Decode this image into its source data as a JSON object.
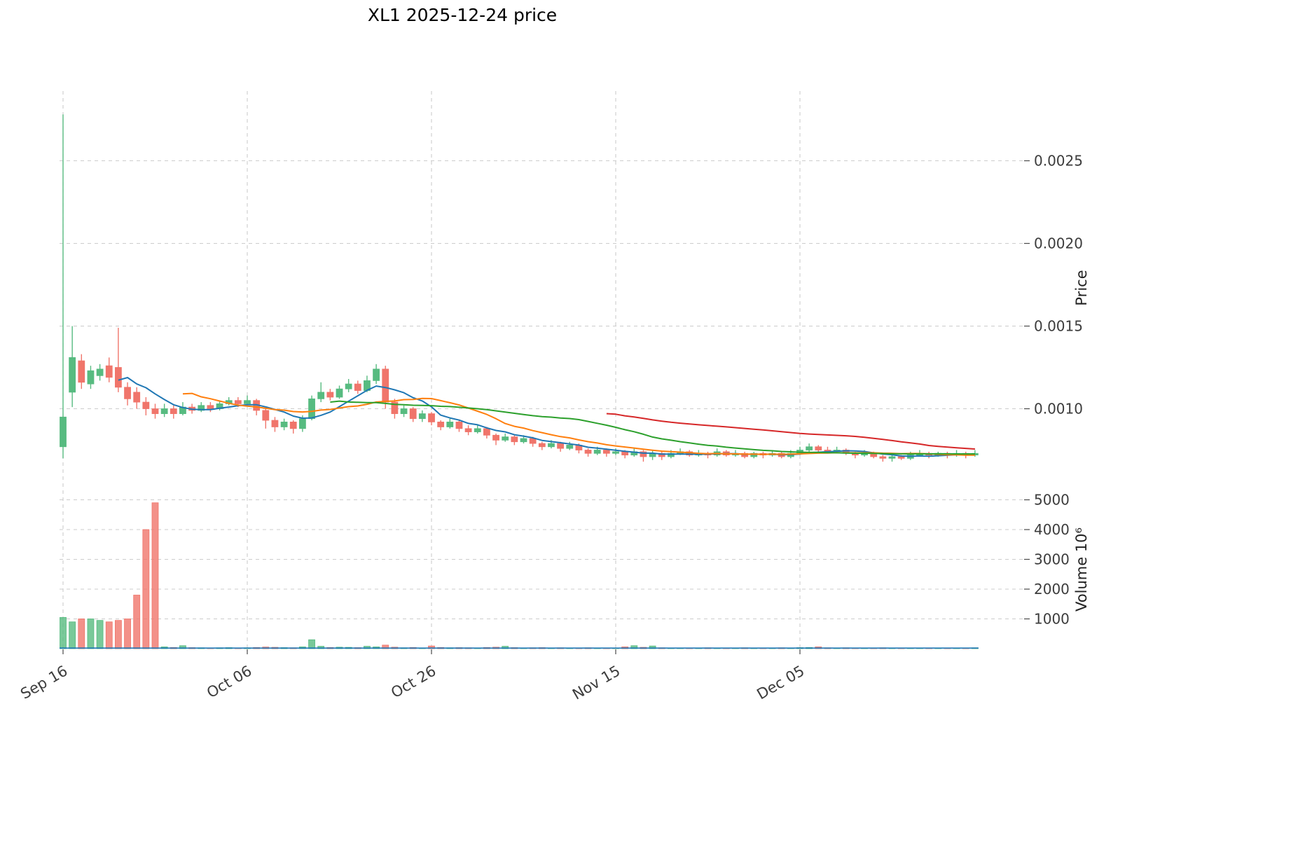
{
  "title": "XL1  2025-12-24  price",
  "axes": {
    "price_label": "Price",
    "volume_label": "Volume  10⁶",
    "price_ticks": [
      {
        "value": 0.001,
        "label": "0.0010"
      },
      {
        "value": 0.0015,
        "label": "0.0015"
      },
      {
        "value": 0.002,
        "label": "0.0020"
      },
      {
        "value": 0.0025,
        "label": "0.0025"
      }
    ],
    "volume_ticks": [
      {
        "value": 1000,
        "label": "1000"
      },
      {
        "value": 2000,
        "label": "2000"
      },
      {
        "value": 3000,
        "label": "3000"
      },
      {
        "value": 4000,
        "label": "4000"
      },
      {
        "value": 5000,
        "label": "5000"
      }
    ],
    "x_ticks": [
      {
        "index": 0,
        "label": "Sep 16"
      },
      {
        "index": 20,
        "label": "Oct 06"
      },
      {
        "index": 40,
        "label": "Oct 26"
      },
      {
        "index": 60,
        "label": "Nov 15"
      },
      {
        "index": 80,
        "label": "Dec 05"
      }
    ]
  },
  "style": {
    "up_color": "#57bb80",
    "down_color": "#f0756b",
    "ma_colors": [
      "#1f77b4",
      "#ff7f0e",
      "#2ca02c",
      "#d62728"
    ],
    "grid_color": "#cccccc",
    "text_color": "#3c3c3c",
    "baseline_color": "#1f77b4"
  },
  "chart_data": {
    "type": "candlestick",
    "symbol": "XL1",
    "as_of_date": "2025-12-24",
    "title": "XL1  2025-12-24  price",
    "ylabel": "Price",
    "ylabel_lower": "Volume  10⁶",
    "price_ylim": [
      0.00055,
      0.00292
    ],
    "volume_ylim": [
      0,
      5400
    ],
    "grid": "dashed",
    "moving_average_windows": [
      7,
      14,
      30,
      60
    ],
    "columns": [
      "date",
      "open",
      "high",
      "low",
      "close",
      "volume_10e6"
    ],
    "ohlcv": [
      [
        "2025-09-16",
        0.00077,
        0.00278,
        0.0007,
        0.00095,
        1050
      ],
      [
        "2025-09-17",
        0.0011,
        0.0015,
        0.00101,
        0.00131,
        900
      ],
      [
        "2025-09-18",
        0.00129,
        0.00133,
        0.00112,
        0.00116,
        1000
      ],
      [
        "2025-09-19",
        0.00115,
        0.00126,
        0.00112,
        0.00123,
        1000
      ],
      [
        "2025-09-20",
        0.0012,
        0.00127,
        0.00117,
        0.00124,
        950
      ],
      [
        "2025-09-21",
        0.00126,
        0.00131,
        0.00116,
        0.00119,
        900
      ],
      [
        "2025-09-22",
        0.00125,
        0.00149,
        0.0011,
        0.00113,
        950
      ],
      [
        "2025-09-23",
        0.00113,
        0.00116,
        0.00102,
        0.00106,
        1000
      ],
      [
        "2025-09-24",
        0.0011,
        0.00113,
        0.001,
        0.00104,
        1800
      ],
      [
        "2025-09-25",
        0.00104,
        0.00107,
        0.00096,
        0.001,
        4000
      ],
      [
        "2025-09-26",
        0.001,
        0.00103,
        0.00094,
        0.00097,
        4900
      ],
      [
        "2025-09-27",
        0.00097,
        0.00103,
        0.00095,
        0.001,
        60
      ],
      [
        "2025-09-28",
        0.001,
        0.00102,
        0.00094,
        0.00097,
        40
      ],
      [
        "2025-09-29",
        0.00097,
        0.00104,
        0.00096,
        0.00101,
        100
      ],
      [
        "2025-09-30",
        0.00101,
        0.00103,
        0.00097,
        0.00099,
        35
      ],
      [
        "2025-10-01",
        0.00099,
        0.00104,
        0.00098,
        0.00102,
        30
      ],
      [
        "2025-10-02",
        0.00102,
        0.00104,
        0.00098,
        0.001,
        25
      ],
      [
        "2025-10-03",
        0.001,
        0.00105,
        0.00099,
        0.00103,
        30
      ],
      [
        "2025-10-04",
        0.00103,
        0.00107,
        0.00102,
        0.00105,
        35
      ],
      [
        "2025-10-05",
        0.00105,
        0.00107,
        0.00101,
        0.00103,
        25
      ],
      [
        "2025-10-06",
        0.00103,
        0.00108,
        0.00102,
        0.00105,
        30
      ],
      [
        "2025-10-07",
        0.00105,
        0.00106,
        0.00096,
        0.00099,
        40
      ],
      [
        "2025-10-08",
        0.00099,
        0.001,
        0.00088,
        0.00093,
        55
      ],
      [
        "2025-10-09",
        0.00093,
        0.00095,
        0.00086,
        0.00089,
        45
      ],
      [
        "2025-10-10",
        0.00089,
        0.00094,
        0.00087,
        0.00092,
        35
      ],
      [
        "2025-10-11",
        0.00092,
        0.00093,
        0.00085,
        0.00088,
        30
      ],
      [
        "2025-10-12",
        0.00088,
        0.00096,
        0.00086,
        0.00094,
        60
      ],
      [
        "2025-10-13",
        0.00094,
        0.00108,
        0.00093,
        0.00106,
        300
      ],
      [
        "2025-10-14",
        0.00106,
        0.00116,
        0.00104,
        0.0011,
        80
      ],
      [
        "2025-10-15",
        0.0011,
        0.00112,
        0.00105,
        0.00107,
        40
      ],
      [
        "2025-10-16",
        0.00107,
        0.00114,
        0.00106,
        0.00112,
        50
      ],
      [
        "2025-10-17",
        0.00112,
        0.00118,
        0.0011,
        0.00115,
        45
      ],
      [
        "2025-10-18",
        0.00115,
        0.00117,
        0.00109,
        0.00111,
        35
      ],
      [
        "2025-10-19",
        0.00111,
        0.0012,
        0.0011,
        0.00117,
        80
      ],
      [
        "2025-10-20",
        0.00117,
        0.00127,
        0.00115,
        0.00124,
        60
      ],
      [
        "2025-10-21",
        0.00124,
        0.00126,
        0.001,
        0.00104,
        120
      ],
      [
        "2025-10-22",
        0.00104,
        0.00106,
        0.00094,
        0.00097,
        50
      ],
      [
        "2025-10-23",
        0.00097,
        0.00102,
        0.00095,
        0.001,
        30
      ],
      [
        "2025-10-24",
        0.001,
        0.00101,
        0.00092,
        0.00094,
        40
      ],
      [
        "2025-10-25",
        0.00094,
        0.00099,
        0.00092,
        0.00097,
        25
      ],
      [
        "2025-10-26",
        0.00097,
        0.00098,
        0.0009,
        0.00092,
        90
      ],
      [
        "2025-10-27",
        0.00092,
        0.00093,
        0.00087,
        0.00089,
        40
      ],
      [
        "2025-10-28",
        0.00089,
        0.00094,
        0.00088,
        0.00092,
        30
      ],
      [
        "2025-10-29",
        0.00092,
        0.00093,
        0.00086,
        0.00088,
        35
      ],
      [
        "2025-10-30",
        0.00088,
        0.0009,
        0.00084,
        0.00086,
        30
      ],
      [
        "2025-10-31",
        0.00086,
        0.0009,
        0.00085,
        0.00088,
        25
      ],
      [
        "2025-11-01",
        0.00088,
        0.00089,
        0.00082,
        0.00084,
        40
      ],
      [
        "2025-11-02",
        0.00084,
        0.00085,
        0.00078,
        0.00081,
        50
      ],
      [
        "2025-11-03",
        0.00081,
        0.00085,
        0.0008,
        0.00083,
        80
      ],
      [
        "2025-11-04",
        0.00083,
        0.00084,
        0.00078,
        0.0008,
        35
      ],
      [
        "2025-11-05",
        0.0008,
        0.00084,
        0.00079,
        0.00082,
        25
      ],
      [
        "2025-11-06",
        0.00082,
        0.00083,
        0.00077,
        0.00079,
        30
      ],
      [
        "2025-11-07",
        0.00079,
        0.0008,
        0.00075,
        0.00077,
        35
      ],
      [
        "2025-11-08",
        0.00077,
        0.00081,
        0.00076,
        0.00079,
        25
      ],
      [
        "2025-11-09",
        0.00079,
        0.0008,
        0.00074,
        0.00076,
        30
      ],
      [
        "2025-11-10",
        0.00076,
        0.0008,
        0.00075,
        0.00078,
        20
      ],
      [
        "2025-11-11",
        0.00078,
        0.00079,
        0.00073,
        0.00075,
        25
      ],
      [
        "2025-11-12",
        0.00075,
        0.00076,
        0.00071,
        0.00073,
        30
      ],
      [
        "2025-11-13",
        0.00073,
        0.00077,
        0.00072,
        0.00075,
        20
      ],
      [
        "2025-11-14",
        0.00075,
        0.00076,
        0.00071,
        0.00073,
        25
      ],
      [
        "2025-11-15",
        0.00073,
        0.00076,
        0.00072,
        0.00074,
        20
      ],
      [
        "2025-11-16",
        0.00074,
        0.00075,
        0.0007,
        0.00072,
        60
      ],
      [
        "2025-11-17",
        0.00072,
        0.00076,
        0.00071,
        0.00074,
        100
      ],
      [
        "2025-11-18",
        0.00074,
        0.00075,
        0.00068,
        0.00071,
        45
      ],
      [
        "2025-11-19",
        0.00071,
        0.00075,
        0.00069,
        0.00073,
        90
      ],
      [
        "2025-11-20",
        0.00073,
        0.00074,
        0.00069,
        0.00071,
        30
      ],
      [
        "2025-11-21",
        0.00071,
        0.00075,
        0.0007,
        0.00073,
        25
      ],
      [
        "2025-11-22",
        0.00073,
        0.00076,
        0.00072,
        0.00074,
        20
      ],
      [
        "2025-11-23",
        0.00074,
        0.00075,
        0.00071,
        0.00072,
        25
      ],
      [
        "2025-11-24",
        0.00072,
        0.00075,
        0.00071,
        0.00073,
        20
      ],
      [
        "2025-11-25",
        0.00073,
        0.00074,
        0.0007,
        0.00072,
        30
      ],
      [
        "2025-11-26",
        0.00072,
        0.00076,
        0.00071,
        0.00074,
        25
      ],
      [
        "2025-11-27",
        0.00074,
        0.00075,
        0.00071,
        0.00072,
        20
      ],
      [
        "2025-11-28",
        0.00072,
        0.00075,
        0.00071,
        0.00073,
        25
      ],
      [
        "2025-11-29",
        0.00073,
        0.00074,
        0.0007,
        0.00071,
        30
      ],
      [
        "2025-11-30",
        0.00071,
        0.00074,
        0.0007,
        0.00073,
        20
      ],
      [
        "2025-12-01",
        0.00073,
        0.00074,
        0.0007,
        0.00072,
        25
      ],
      [
        "2025-12-02",
        0.00072,
        0.00075,
        0.00071,
        0.00073,
        20
      ],
      [
        "2025-12-03",
        0.00073,
        0.00074,
        0.0007,
        0.00071,
        30
      ],
      [
        "2025-12-04",
        0.00071,
        0.00075,
        0.0007,
        0.00073,
        25
      ],
      [
        "2025-12-05",
        0.00073,
        0.00077,
        0.00072,
        0.00075,
        35
      ],
      [
        "2025-12-06",
        0.00075,
        0.00079,
        0.00074,
        0.00077,
        40
      ],
      [
        "2025-12-07",
        0.00077,
        0.00078,
        0.00074,
        0.00075,
        60
      ],
      [
        "2025-12-08",
        0.00075,
        0.00077,
        0.00073,
        0.00074,
        30
      ],
      [
        "2025-12-09",
        0.00074,
        0.00077,
        0.00073,
        0.00075,
        25
      ],
      [
        "2025-12-10",
        0.00075,
        0.00076,
        0.00072,
        0.00073,
        30
      ],
      [
        "2025-12-11",
        0.00073,
        0.00074,
        0.0007,
        0.00072,
        25
      ],
      [
        "2025-12-12",
        0.00072,
        0.00075,
        0.00071,
        0.00073,
        20
      ],
      [
        "2025-12-13",
        0.00073,
        0.00074,
        0.0007,
        0.00071,
        25
      ],
      [
        "2025-12-14",
        0.00071,
        0.00072,
        0.00068,
        0.0007,
        30
      ],
      [
        "2025-12-15",
        0.0007,
        0.00073,
        0.00068,
        0.00071,
        25
      ],
      [
        "2025-12-16",
        0.00071,
        0.00072,
        0.00069,
        0.0007,
        20
      ],
      [
        "2025-12-17",
        0.0007,
        0.00074,
        0.00069,
        0.00072,
        25
      ],
      [
        "2025-12-18",
        0.00072,
        0.00075,
        0.00071,
        0.00073,
        20
      ],
      [
        "2025-12-19",
        0.00073,
        0.00074,
        0.0007,
        0.00072,
        25
      ],
      [
        "2025-12-20",
        0.00072,
        0.00074,
        0.00071,
        0.00073,
        20
      ],
      [
        "2025-12-21",
        0.00073,
        0.00074,
        0.0007,
        0.00072,
        20
      ],
      [
        "2025-12-22",
        0.00072,
        0.00075,
        0.00071,
        0.00073,
        25
      ],
      [
        "2025-12-23",
        0.00073,
        0.00074,
        0.0007,
        0.00072,
        20
      ],
      [
        "2025-12-24",
        0.00072,
        0.00075,
        0.00071,
        0.00073,
        30
      ]
    ]
  }
}
